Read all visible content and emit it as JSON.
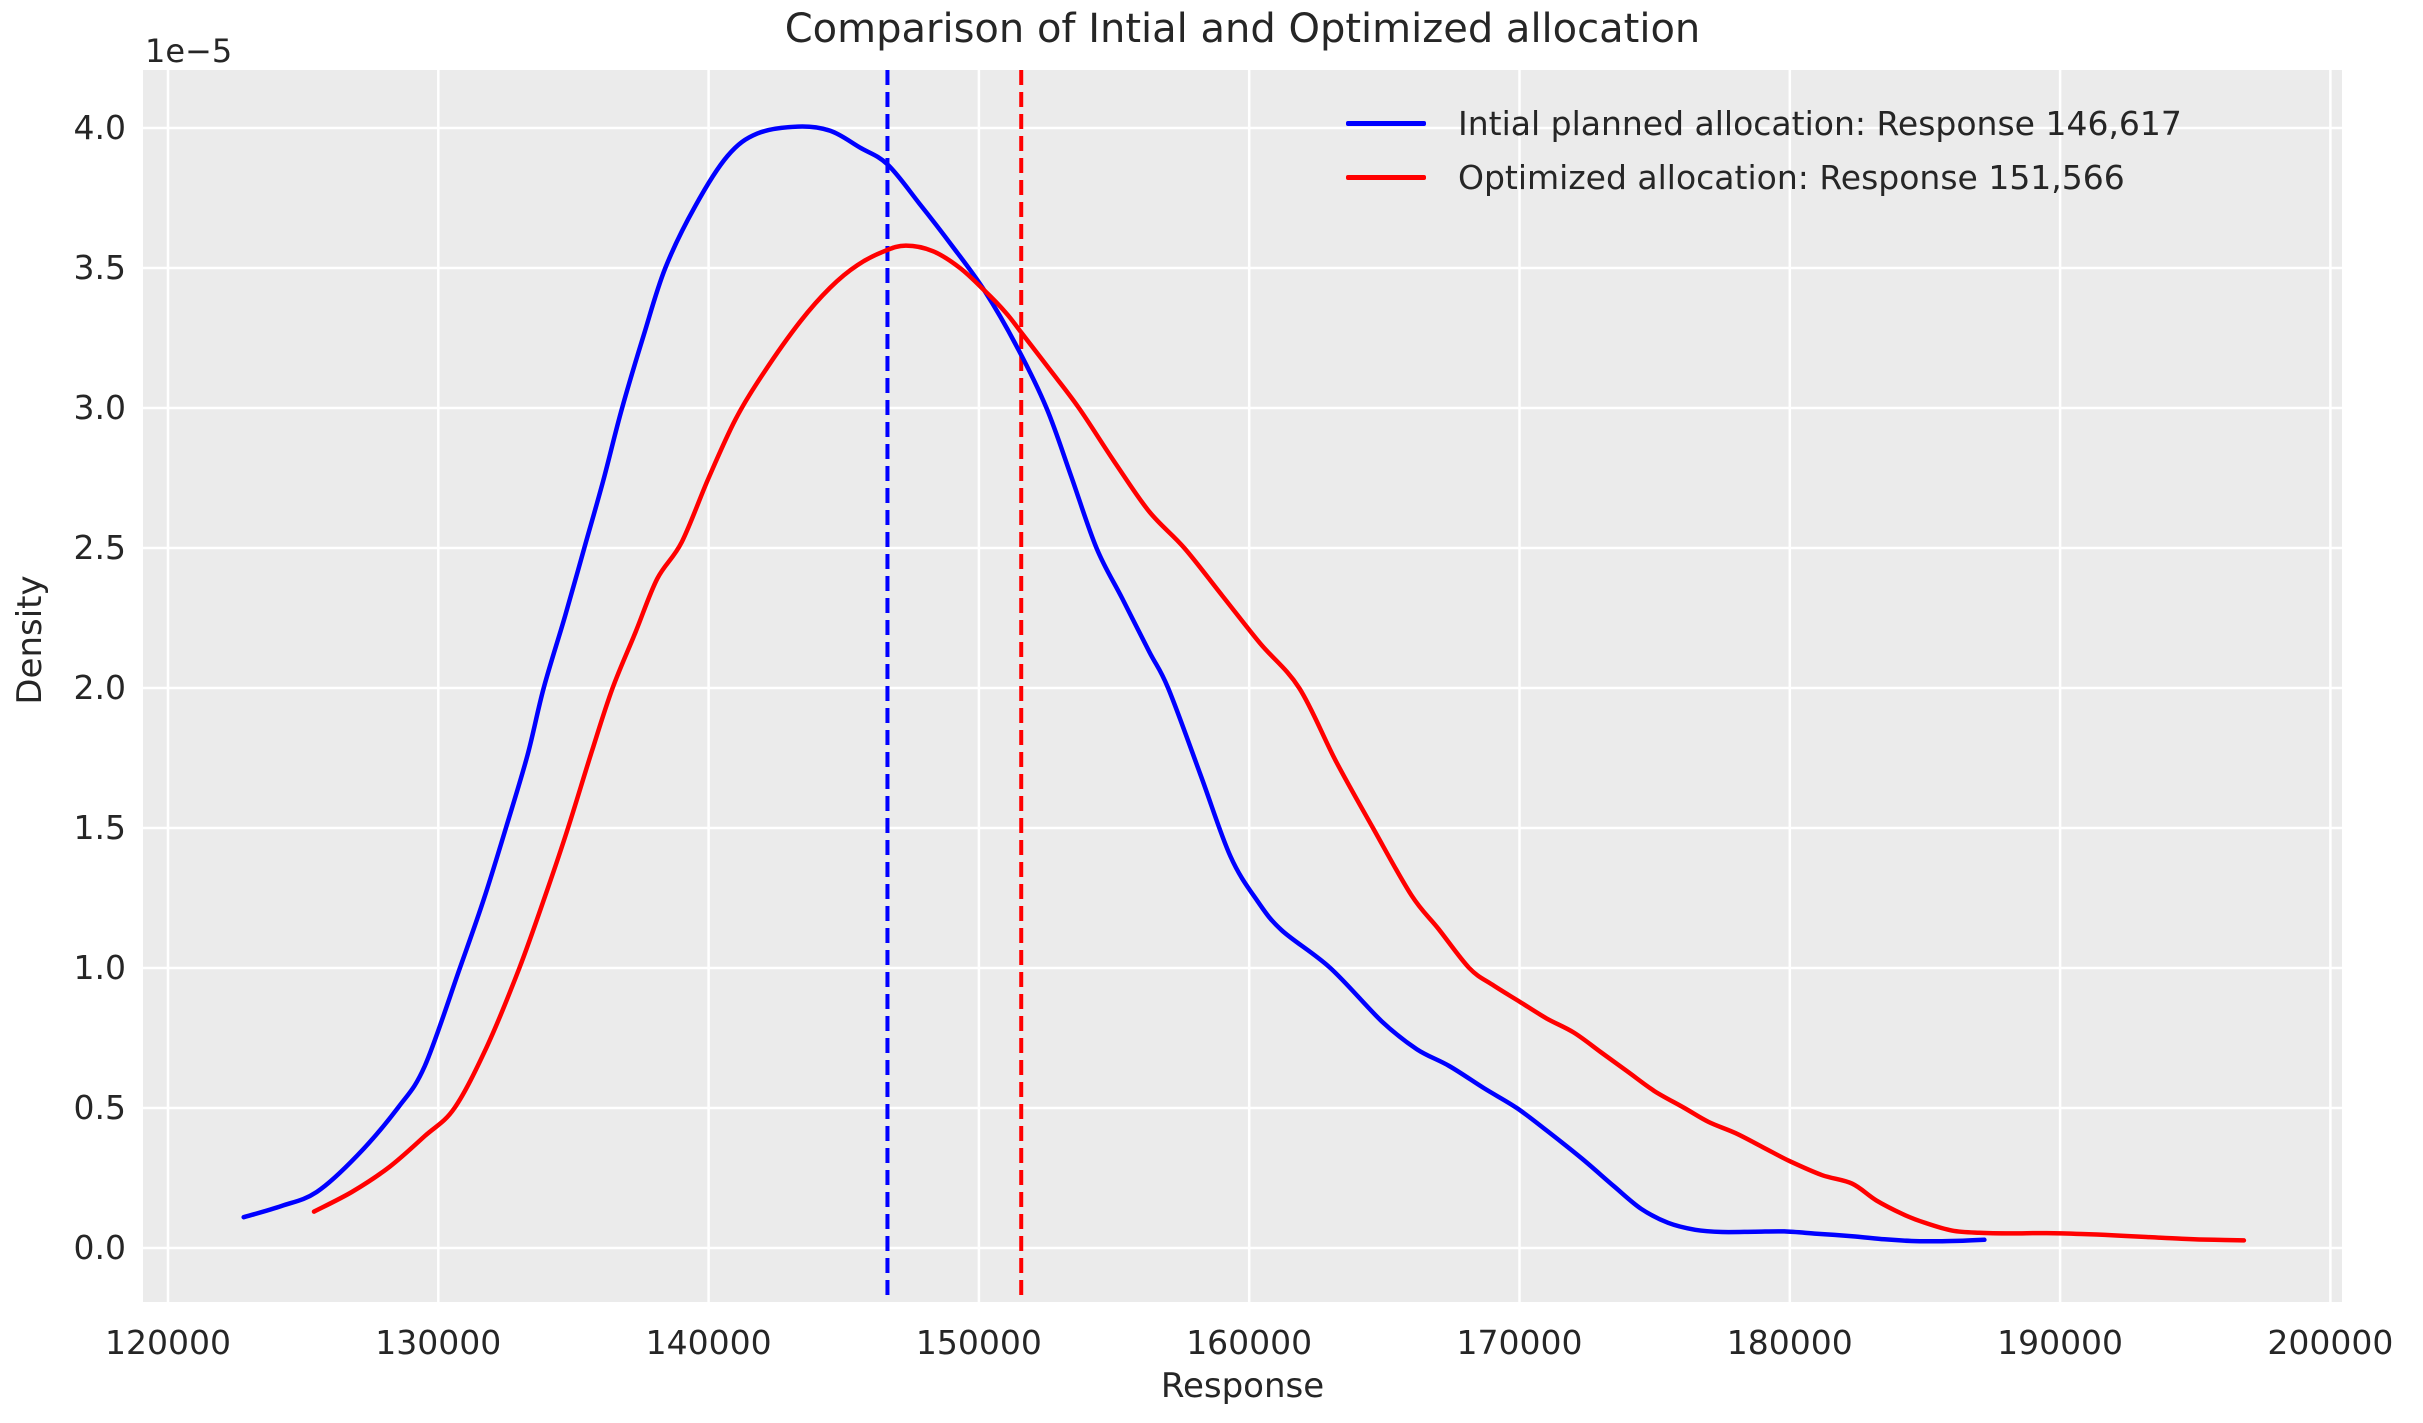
{
  "figure": {
    "background": "#ffffff",
    "axes_background": "#ebebeb",
    "grid_color": "#ffffff",
    "text_color": "#262626"
  },
  "chart_data": {
    "type": "line",
    "title": "Comparison of Intial and Optimized allocation",
    "xlabel": "Response",
    "ylabel": "Density",
    "y_offset_label": "1e−5",
    "grid": true,
    "legend_position": "upper right",
    "legend_frame": false,
    "xlim": [
      119075,
      200430
    ],
    "ylim": [
      -0.193,
      4.207
    ],
    "y_unit_factor": "1e-5",
    "x_ticks": [
      {
        "value": 120000,
        "label": "120000"
      },
      {
        "value": 130000,
        "label": "130000"
      },
      {
        "value": 140000,
        "label": "140000"
      },
      {
        "value": 150000,
        "label": "150000"
      },
      {
        "value": 160000,
        "label": "160000"
      },
      {
        "value": 170000,
        "label": "170000"
      },
      {
        "value": 180000,
        "label": "180000"
      },
      {
        "value": 190000,
        "label": "190000"
      },
      {
        "value": 200000,
        "label": "200000"
      }
    ],
    "y_ticks": [
      {
        "value": 0.0,
        "label": "0.0"
      },
      {
        "value": 0.5,
        "label": "0.5"
      },
      {
        "value": 1.0,
        "label": "1.0"
      },
      {
        "value": 1.5,
        "label": "1.5"
      },
      {
        "value": 2.0,
        "label": "2.0"
      },
      {
        "value": 2.5,
        "label": "2.5"
      },
      {
        "value": 3.0,
        "label": "3.0"
      },
      {
        "value": 3.5,
        "label": "3.5"
      },
      {
        "value": 4.0,
        "label": "4.0"
      }
    ],
    "series": [
      {
        "name": "Intial planned allocation: Response 146,617",
        "color": "#0000ff",
        "style": "solid",
        "points": [
          [
            122800,
            0.11
          ],
          [
            124200,
            0.15
          ],
          [
            125500,
            0.2
          ],
          [
            127000,
            0.33
          ],
          [
            128500,
            0.5
          ],
          [
            129500,
            0.65
          ],
          [
            130800,
            1.0
          ],
          [
            131700,
            1.25
          ],
          [
            132500,
            1.5
          ],
          [
            133300,
            1.76
          ],
          [
            133900,
            2.0
          ],
          [
            134700,
            2.26
          ],
          [
            135400,
            2.5
          ],
          [
            136100,
            2.74
          ],
          [
            136800,
            3.0
          ],
          [
            137600,
            3.26
          ],
          [
            138400,
            3.5
          ],
          [
            139500,
            3.72
          ],
          [
            140700,
            3.9
          ],
          [
            141800,
            3.98
          ],
          [
            143300,
            4.005
          ],
          [
            144500,
            3.99
          ],
          [
            145600,
            3.93
          ],
          [
            146617,
            3.87
          ],
          [
            147800,
            3.73
          ],
          [
            149000,
            3.58
          ],
          [
            150200,
            3.42
          ],
          [
            151400,
            3.22
          ],
          [
            152500,
            3.0
          ],
          [
            153400,
            2.76
          ],
          [
            154350,
            2.5
          ],
          [
            155300,
            2.32
          ],
          [
            156300,
            2.13
          ],
          [
            157000,
            2.0
          ],
          [
            158200,
            1.69
          ],
          [
            159300,
            1.4
          ],
          [
            160300,
            1.24
          ],
          [
            161200,
            1.135
          ],
          [
            163000,
            1.0
          ],
          [
            164900,
            0.81
          ],
          [
            166200,
            0.71
          ],
          [
            167400,
            0.65
          ],
          [
            168700,
            0.57
          ],
          [
            169900,
            0.5
          ],
          [
            171000,
            0.42
          ],
          [
            172300,
            0.32
          ],
          [
            173500,
            0.22
          ],
          [
            174500,
            0.14
          ],
          [
            175500,
            0.09
          ],
          [
            176500,
            0.065
          ],
          [
            177500,
            0.057
          ],
          [
            178700,
            0.058
          ],
          [
            179800,
            0.059
          ],
          [
            181000,
            0.051
          ],
          [
            182300,
            0.042
          ],
          [
            183500,
            0.031
          ],
          [
            184500,
            0.025
          ],
          [
            185500,
            0.024
          ],
          [
            186400,
            0.026
          ],
          [
            187200,
            0.029
          ]
        ]
      },
      {
        "name": "Optimized allocation: Response 151,566",
        "color": "#ff0000",
        "style": "solid",
        "points": [
          [
            125400,
            0.13
          ],
          [
            126800,
            0.2
          ],
          [
            128200,
            0.29
          ],
          [
            129500,
            0.4
          ],
          [
            130600,
            0.5
          ],
          [
            131800,
            0.72
          ],
          [
            133000,
            1.0
          ],
          [
            134000,
            1.27
          ],
          [
            134800,
            1.5
          ],
          [
            135700,
            1.78
          ],
          [
            136450,
            2.0
          ],
          [
            137300,
            2.2
          ],
          [
            138100,
            2.39
          ],
          [
            139000,
            2.52
          ],
          [
            140000,
            2.75
          ],
          [
            141000,
            2.96
          ],
          [
            142000,
            3.12
          ],
          [
            143400,
            3.31
          ],
          [
            144500,
            3.43
          ],
          [
            145500,
            3.51
          ],
          [
            146500,
            3.56
          ],
          [
            147300,
            3.58
          ],
          [
            148300,
            3.56
          ],
          [
            149300,
            3.5
          ],
          [
            150200,
            3.42
          ],
          [
            151000,
            3.34
          ],
          [
            151566,
            3.27
          ],
          [
            152600,
            3.14
          ],
          [
            153700,
            3.0
          ],
          [
            155000,
            2.81
          ],
          [
            156300,
            2.63
          ],
          [
            157600,
            2.5
          ],
          [
            159000,
            2.33
          ],
          [
            160400,
            2.16
          ],
          [
            161850,
            2.0
          ],
          [
            163200,
            1.74
          ],
          [
            164580,
            1.5
          ],
          [
            166000,
            1.26
          ],
          [
            167000,
            1.14
          ],
          [
            168140,
            1.0
          ],
          [
            169000,
            0.94
          ],
          [
            170000,
            0.88
          ],
          [
            171000,
            0.82
          ],
          [
            172000,
            0.77
          ],
          [
            173000,
            0.7
          ],
          [
            174000,
            0.63
          ],
          [
            175000,
            0.56
          ],
          [
            176100,
            0.5
          ],
          [
            177000,
            0.45
          ],
          [
            178000,
            0.41
          ],
          [
            179000,
            0.36
          ],
          [
            180000,
            0.31
          ],
          [
            181200,
            0.26
          ],
          [
            182300,
            0.23
          ],
          [
            183200,
            0.17
          ],
          [
            184200,
            0.12
          ],
          [
            185000,
            0.09
          ],
          [
            186000,
            0.062
          ],
          [
            187000,
            0.054
          ],
          [
            188200,
            0.052
          ],
          [
            189500,
            0.053
          ],
          [
            190800,
            0.05
          ],
          [
            192000,
            0.045
          ],
          [
            193200,
            0.039
          ],
          [
            194500,
            0.033
          ],
          [
            195700,
            0.029
          ],
          [
            196800,
            0.027
          ]
        ]
      }
    ],
    "vlines": [
      {
        "x": 146617,
        "color": "#0000ff",
        "style": "dashed"
      },
      {
        "x": 151566,
        "color": "#ff0000",
        "style": "dashed"
      }
    ]
  }
}
